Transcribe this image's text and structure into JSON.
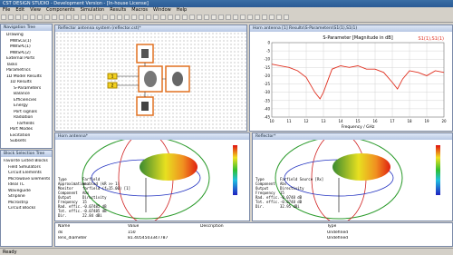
{
  "app": {
    "title": "CST DESIGN STUDIO - Development Version - [In-house License]",
    "menu": [
      "File",
      "Edit",
      "View",
      "Components",
      "Simulation",
      "Results",
      "Macros",
      "Window",
      "Help"
    ],
    "nav_tree": {
      "title": "Navigation Tree",
      "items": [
        "Drawing",
        "MWSCE(1)",
        "MWSPL(1)",
        "MWSPL(2)",
        "External Ports",
        "Tasks",
        "Parametrics",
        "1D Model Results",
        "1D Results",
        "S-Parameters",
        "Balance",
        "Efficiencies",
        "Energy",
        "Port signals",
        "Radiation",
        "Farfields",
        "Port Modes",
        "Excitation",
        "Subsets"
      ]
    },
    "block_tree": {
      "title": "Block Selection Tree",
      "items": [
        "Favorite Listed Blocks",
        "Field Simulators",
        "Circuit Elements",
        "Microwave Elements",
        "Ideal TL",
        "Waveguide",
        "Stripline",
        "Microstrip",
        "Circuit Blocks"
      ]
    },
    "schematic": {
      "title": "Reflector antenna system (reflector.cst)*",
      "ports": [
        "1",
        "2"
      ]
    },
    "splot": {
      "window_title": "Horn antenna [1] Results\\S-Parameters\\S1(1),S1(1)",
      "type": "line",
      "title": "S-Parameter [Magnitude in dB]",
      "xlabel": "Frequency / GHz",
      "x": [
        10,
        10.5,
        11,
        11.5,
        12,
        12.5,
        12.8,
        13,
        13.5,
        14,
        14.5,
        15,
        15.5,
        16,
        16.5,
        17,
        17.3,
        17.6,
        18,
        18.5,
        19,
        19.5,
        20
      ],
      "series": [
        {
          "name": "S1(1),S1(1)",
          "color": "#e03020",
          "values": [
            -13,
            -14,
            -15,
            -17,
            -21,
            -30,
            -34,
            -30,
            -16,
            -14,
            -15,
            -14,
            -16,
            -16,
            -18,
            -24,
            -28,
            -22,
            -17,
            -18,
            -20,
            -17,
            -18
          ]
        }
      ],
      "xlim": [
        10,
        20
      ],
      "xticks": [
        10,
        11,
        12,
        13,
        14,
        15,
        16,
        17,
        18,
        19,
        20
      ],
      "ylim": [
        -45,
        0
      ],
      "yticks": [
        -45,
        -40,
        -35,
        -30,
        -25,
        -20,
        -15,
        -10,
        -5,
        0
      ],
      "grid": true
    },
    "horn": {
      "title": "Horn antenna*",
      "info": [
        [
          "Type",
          "Farfield"
        ],
        [
          "Approximation",
          "enabled (kR >> 1)"
        ],
        [
          "Monitor",
          "farfield (f=15.00) [1]"
        ],
        [
          "Component",
          "Abs"
        ],
        [
          "Output",
          "Directivity"
        ],
        [
          "Frequency",
          "15"
        ],
        [
          "Rad. effic.",
          "-0.07485 dB"
        ],
        [
          "Tot. effic.",
          "-0.07485 dB"
        ],
        [
          "Dir.",
          "22.84 dBi"
        ]
      ]
    },
    "reflector": {
      "title": "Reflector*",
      "info": [
        [
          "Type",
          "Farfield Source [Rx]"
        ],
        [
          "Component",
          "Abs"
        ],
        [
          "Output",
          "Directivity"
        ],
        [
          "Frequency",
          "15"
        ],
        [
          "Rad. effic.",
          "-0.0748 dB"
        ],
        [
          "Tot. effic.",
          "-0.0748 dB"
        ],
        [
          "Dir.",
          "32.95 dBi"
        ]
      ]
    },
    "params": {
      "headers": [
        "Name",
        "Value",
        "Description",
        "Type"
      ],
      "rows": [
        [
          "ds",
          "150",
          "",
          "Undefined"
        ],
        [
          "lens_diameter",
          "81.4054503347787",
          "",
          "Undefined"
        ]
      ]
    },
    "status": "Ready"
  }
}
